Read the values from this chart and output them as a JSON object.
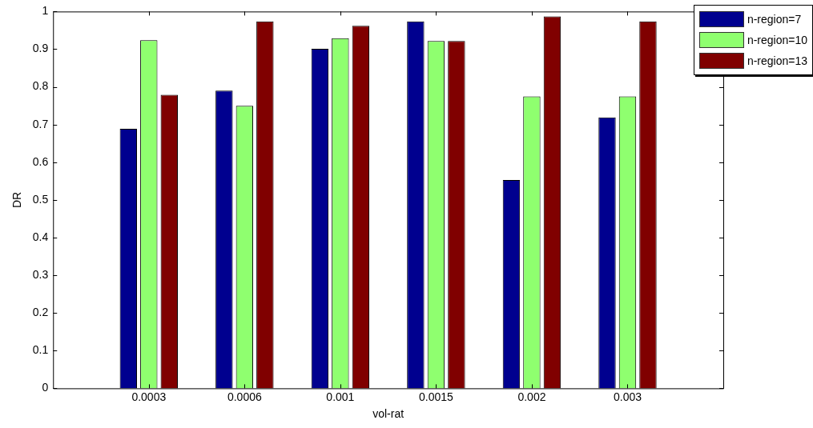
{
  "chart_data": {
    "type": "bar",
    "xlabel": "vol-rat",
    "ylabel": "DR",
    "categories": [
      "0.0003",
      "0.0006",
      "0.001",
      "0.0015",
      "0.002",
      "0.003"
    ],
    "series": [
      {
        "name": "n-region=7",
        "color": "#00008f",
        "values": [
          0.689,
          0.79,
          0.901,
          0.974,
          0.553,
          0.719
        ]
      },
      {
        "name": "n-region=10",
        "color": "#8fff6f",
        "values": [
          0.924,
          0.75,
          0.929,
          0.922,
          0.775,
          0.775
        ]
      },
      {
        "name": "n-region=13",
        "color": "#800000",
        "values": [
          0.779,
          0.974,
          0.962,
          0.922,
          0.987,
          0.974
        ]
      }
    ],
    "ylim": [
      0,
      1
    ],
    "yticks": [
      0,
      0.1,
      0.2,
      0.3,
      0.4,
      0.5,
      0.6,
      0.7,
      0.8,
      0.9,
      1
    ],
    "grid": false,
    "legend": "top right"
  }
}
